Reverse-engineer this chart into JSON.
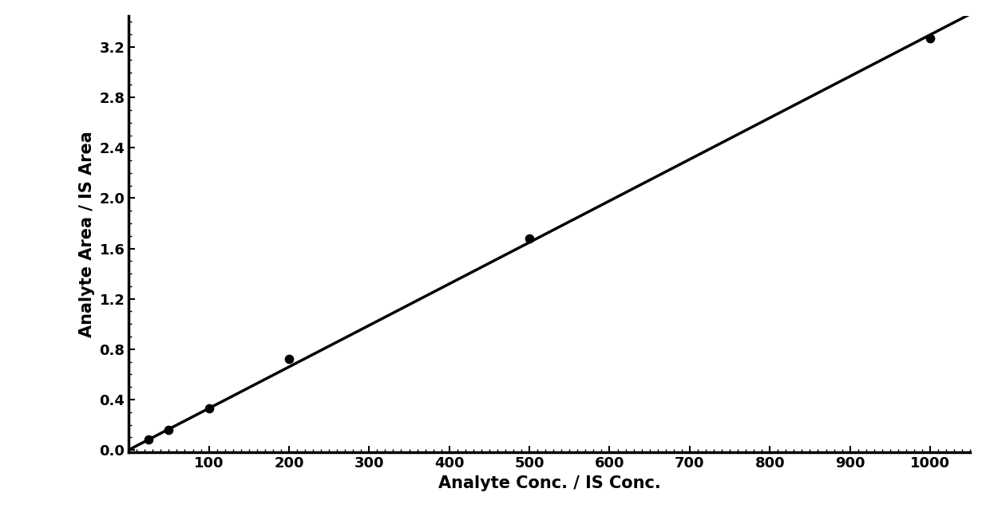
{
  "x_data": [
    25,
    50,
    100,
    200,
    500,
    1000
  ],
  "y_data": [
    0.08,
    0.16,
    0.33,
    0.72,
    1.68,
    3.27
  ],
  "line_color": "#000000",
  "marker_color": "#000000",
  "marker_size": 55,
  "line_width": 2.5,
  "xlabel": "Analyte Conc. / IS Conc.",
  "ylabel": "Analyte Area / IS Area",
  "xlim": [
    0,
    1050
  ],
  "ylim": [
    -0.02,
    3.45
  ],
  "xticks": [
    100,
    200,
    300,
    400,
    500,
    600,
    700,
    800,
    900,
    1000
  ],
  "yticks": [
    0.0,
    0.4,
    0.8,
    1.2,
    1.6,
    2.0,
    2.4,
    2.8,
    3.2
  ],
  "xlabel_fontsize": 15,
  "ylabel_fontsize": 15,
  "tick_fontsize": 13,
  "background_color": "#ffffff",
  "font_weight": "bold",
  "font_family": "Arial Black"
}
